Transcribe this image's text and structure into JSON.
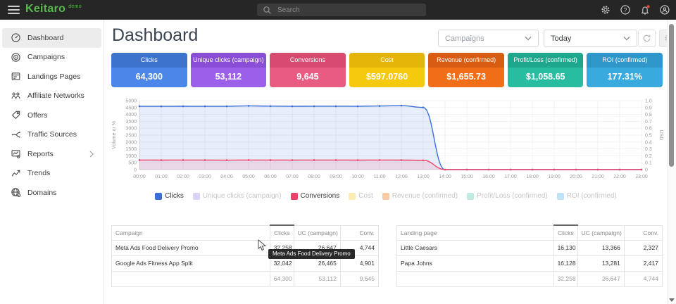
{
  "topbar": {
    "brand": "Keitaro",
    "brand_suffix": "demo",
    "search_placeholder": "Search",
    "notification_dot": true
  },
  "sidebar": {
    "items": [
      {
        "label": "Dashboard",
        "icon": "dashboard-icon",
        "active": true
      },
      {
        "label": "Campaigns",
        "icon": "campaigns-icon",
        "active": false
      },
      {
        "label": "Landings Pages",
        "icon": "landings-icon",
        "active": false
      },
      {
        "label": "Affiliate Networks",
        "icon": "affiliate-icon",
        "active": false
      },
      {
        "label": "Offers",
        "icon": "offers-icon",
        "active": false
      },
      {
        "label": "Traffic Sources",
        "icon": "traffic-icon",
        "active": false
      },
      {
        "label": "Reports",
        "icon": "reports-icon",
        "active": false,
        "chevron": true
      },
      {
        "label": "Trends",
        "icon": "trends-icon",
        "active": false
      },
      {
        "label": "Domains",
        "icon": "domains-icon",
        "active": false
      }
    ]
  },
  "header": {
    "title": "Dashboard",
    "campaign_filter": "Campaigns",
    "date_filter": "Today"
  },
  "cards": [
    {
      "label": "Clicks",
      "value": "64,300",
      "color_top": "#3d73cc",
      "color_body": "#4a87e8"
    },
    {
      "label": "Unique clicks (campaign)",
      "value": "53,112",
      "color_top": "#8a4ed6",
      "color_body": "#9b5fe9"
    },
    {
      "label": "Conversions",
      "value": "9,645",
      "color_top": "#d74b70",
      "color_body": "#e75c80"
    },
    {
      "label": "Cost",
      "value": "$597.0760",
      "color_top": "#e3b509",
      "color_body": "#f4c90e"
    },
    {
      "label": "Revenue (confirmed)",
      "value": "$1,655.73",
      "color_top": "#d85c12",
      "color_body": "#ef6e17"
    },
    {
      "label": "Profit/Loss (confirmed)",
      "value": "$1,058.65",
      "color_top": "#1ea78d",
      "color_body": "#28bda1"
    },
    {
      "label": "ROI (confirmed)",
      "value": "177.31%",
      "color_top": "#2e96c9",
      "color_body": "#39aadd"
    }
  ],
  "chart_data": {
    "type": "area",
    "x": [
      "00:00",
      "01:00",
      "02:00",
      "03:00",
      "04:00",
      "05:00",
      "06:00",
      "07:00",
      "08:00",
      "09:00",
      "10:00",
      "11:00",
      "12:00",
      "13:00",
      "14:00",
      "15:00",
      "16:00",
      "17:00",
      "18:00",
      "19:00",
      "20:00",
      "21:00",
      "22:00",
      "23:00"
    ],
    "ylabel_left": "Volume or %",
    "ylabel_right": "USD",
    "ylim_left": [
      0,
      5000
    ],
    "ylim_right": [
      0,
      1
    ],
    "yleft_ticks": [
      "0",
      "500",
      "1000",
      "1500",
      "2000",
      "2500",
      "3000",
      "3500",
      "4000",
      "4500",
      "5000"
    ],
    "yright_ticks": [
      "0",
      "0.1",
      "0.2",
      "0.3",
      "0.4",
      "0.5",
      "0.6",
      "0.7",
      "0.8",
      "0.9",
      "1.0"
    ],
    "grid": true,
    "legend_position": "bottom",
    "series": [
      {
        "name": "Clicks",
        "color": "#3a6fd8",
        "values": [
          4590,
          4588,
          4592,
          4590,
          4591,
          4622,
          4601,
          4590,
          4593,
          4595,
          4590,
          4612,
          4640,
          4506,
          0,
          0,
          0,
          0,
          0,
          0,
          0,
          0,
          0,
          0
        ]
      },
      {
        "name": "Conversions",
        "color": "#ee4168",
        "values": [
          690,
          689,
          691,
          690,
          688,
          692,
          690,
          689,
          691,
          690,
          689,
          692,
          689,
          675,
          0,
          0,
          0,
          0,
          0,
          0,
          0,
          0,
          0,
          0
        ]
      }
    ],
    "legend": [
      {
        "label": "Clicks",
        "color": "#3a6fd8",
        "active": true
      },
      {
        "label": "Unique clicks (campaign)",
        "color": "#dcd2f7",
        "active": false
      },
      {
        "label": "Conversions",
        "color": "#ee4168",
        "active": true
      },
      {
        "label": "Cost",
        "color": "#fbecb2",
        "active": false
      },
      {
        "label": "Revenue (confirmed)",
        "color": "#f8cba4",
        "active": false
      },
      {
        "label": "Profit/Loss (confirmed)",
        "color": "#bfeae2",
        "active": false
      },
      {
        "label": "ROI (confirmed)",
        "color": "#bfe3f6",
        "active": false
      }
    ]
  },
  "tables": [
    {
      "name": "campaigns",
      "columns": [
        "Campaign",
        "Clicks",
        "UC (campaign)",
        "Conv."
      ],
      "sorted_column": 1,
      "rows": [
        [
          "Meta Ads Food Delivery Promo",
          "32,258",
          "26,647",
          "4,744"
        ],
        [
          "Google Ads Fitness App Split",
          "32,042",
          "26,465",
          "4,901"
        ]
      ],
      "totals": [
        "",
        "64,300",
        "53,112",
        "9,645"
      ]
    },
    {
      "name": "landing-pages",
      "columns": [
        "Landing page",
        "Clicks",
        "UC (campaign)",
        "Conv."
      ],
      "sorted_column": 1,
      "rows": [
        [
          "Little Caesars",
          "16,130",
          "13,366",
          "2,327"
        ],
        [
          "Papa Johns",
          "16,128",
          "13,281",
          "2,417"
        ]
      ],
      "totals": [
        "",
        "32,258",
        "26,647",
        "4,744"
      ]
    }
  ],
  "tooltip": {
    "text": "Meta Ads Food Delivery Promo"
  }
}
